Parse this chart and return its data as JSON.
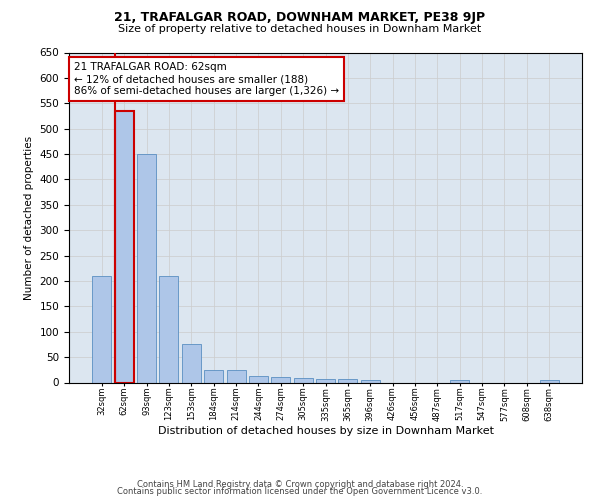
{
  "title": "21, TRAFALGAR ROAD, DOWNHAM MARKET, PE38 9JP",
  "subtitle": "Size of property relative to detached houses in Downham Market",
  "xlabel": "Distribution of detached houses by size in Downham Market",
  "ylabel": "Number of detached properties",
  "categories": [
    "32sqm",
    "62sqm",
    "93sqm",
    "123sqm",
    "153sqm",
    "184sqm",
    "214sqm",
    "244sqm",
    "274sqm",
    "305sqm",
    "335sqm",
    "365sqm",
    "396sqm",
    "426sqm",
    "456sqm",
    "487sqm",
    "517sqm",
    "547sqm",
    "577sqm",
    "608sqm",
    "638sqm"
  ],
  "values": [
    210,
    535,
    450,
    210,
    75,
    25,
    25,
    12,
    10,
    8,
    7,
    7,
    5,
    0,
    0,
    0,
    5,
    0,
    0,
    0,
    5
  ],
  "bar_color": "#aec6e8",
  "highlight_index": 1,
  "highlight_edge_color": "#cc0000",
  "normal_edge_color": "#5a8fc2",
  "annotation_text": "21 TRAFALGAR ROAD: 62sqm\n← 12% of detached houses are smaller (188)\n86% of semi-detached houses are larger (1,326) →",
  "annotation_box_color": "#ffffff",
  "annotation_box_edge_color": "#cc0000",
  "ylim": [
    0,
    650
  ],
  "yticks": [
    0,
    50,
    100,
    150,
    200,
    250,
    300,
    350,
    400,
    450,
    500,
    550,
    600,
    650
  ],
  "footer_line1": "Contains HM Land Registry data © Crown copyright and database right 2024.",
  "footer_line2": "Contains public sector information licensed under the Open Government Licence v3.0.",
  "bg_color": "#ffffff",
  "grid_color": "#cccccc",
  "fig_width": 6.0,
  "fig_height": 5.0,
  "dpi": 100
}
